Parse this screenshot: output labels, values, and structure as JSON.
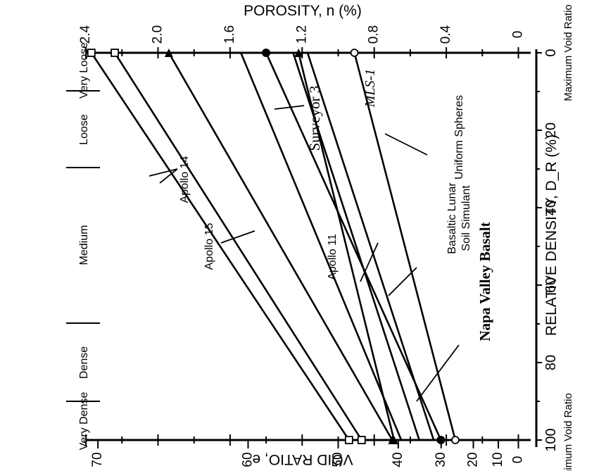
{
  "chart_data": {
    "type": "line",
    "orientation": "rotated-90-clockwise",
    "title": "",
    "xlabel": "RELATIVE DENSITY, D_R (%)",
    "ylabel": "VOID RATIO, e",
    "top_axis_label": "POROSITY, n (%)",
    "xlim": [
      0,
      100
    ],
    "ylim": [
      0,
      2.5
    ],
    "x_ticks": [
      "0",
      "20",
      "40",
      "60",
      "80",
      "100"
    ],
    "y_ticks": [
      "0",
      "0.4",
      "0.8",
      "1.2",
      "1.6",
      "2.0",
      "2.4"
    ],
    "porosity_ticks": [
      "70",
      "60",
      "50",
      "40",
      "30",
      "20",
      "10",
      "0"
    ],
    "left_end_label": "Maximum Void Ratio",
    "right_end_label": "Minimum Void Ratio",
    "density_bands": [
      "Very Loose",
      "Loose",
      "Medium",
      "Dense",
      "Very Dense"
    ],
    "series": [
      {
        "name": "Apollo 14",
        "x": [
          0,
          100
        ],
        "y": [
          2.37,
          0.94
        ],
        "marker": "square"
      },
      {
        "name": "Apollo 14",
        "x": [
          0,
          100
        ],
        "y": [
          2.24,
          0.87
        ],
        "marker": "square"
      },
      {
        "name": "Apollo 15",
        "x": [
          0,
          100
        ],
        "y": [
          1.94,
          0.7
        ],
        "marker": "triangle"
      },
      {
        "name": "Surveyor 3",
        "x": [
          0,
          100
        ],
        "y": [
          1.54,
          0.65
        ],
        "marker": ""
      },
      {
        "name": "MLS-1",
        "x": [
          0,
          100
        ],
        "y": [
          1.4,
          0.43
        ],
        "marker": "circle-filled"
      },
      {
        "name": "Apollo 11",
        "x": [
          0,
          100
        ],
        "y": [
          1.22,
          0.69
        ],
        "marker": "triangle"
      },
      {
        "name": "Napa Valley Basalt",
        "x": [
          0,
          100
        ],
        "y": [
          1.25,
          0.55
        ],
        "marker": ""
      },
      {
        "name": "Basaltic Lunar Soil Simulant",
        "x": [
          0,
          100
        ],
        "y": [
          1.17,
          0.47
        ],
        "marker": ""
      },
      {
        "name": "Uniform Spheres",
        "x": [
          0,
          100
        ],
        "y": [
          0.91,
          0.35
        ],
        "marker": "circle-open"
      }
    ],
    "annotations": {
      "apollo14": "Apollo 14",
      "apollo15": "Apollo 15",
      "apollo11": "Apollo 11",
      "surveyor3": "Surveyor 3",
      "mls1": "MLS-1",
      "napa": "Napa Valley Basalt",
      "basaltic_l1": "Basaltic Lunar",
      "basaltic_l2": "Soil Simulant",
      "uniform": "Uniform Spheres"
    }
  }
}
